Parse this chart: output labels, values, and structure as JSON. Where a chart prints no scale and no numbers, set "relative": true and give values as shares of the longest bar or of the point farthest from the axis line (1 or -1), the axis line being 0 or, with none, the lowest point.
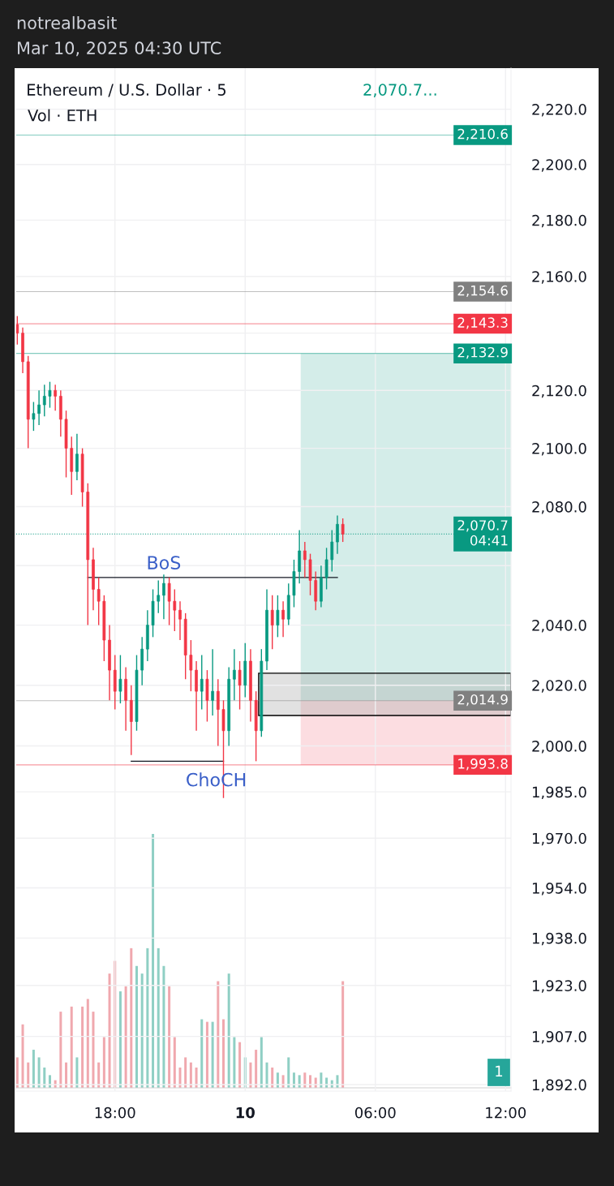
{
  "chart_data": [
    {
      "type": "candlestick",
      "title": "Ethereum / U.S. Dollar · 5",
      "annotations": [
        "notrealbasit",
        "Mar 10, 2025 04:30 UTC",
        "2,070.7...",
        {
          "text": "BoS",
          "x": "2025-03-09T20:15",
          "y": 2056
        },
        {
          "text": "ChoCH",
          "x": "2025-03-09T22:40",
          "y": 1995
        }
      ],
      "x": [
        "2025-03-09T13:30",
        "2025-03-09T13:45",
        "2025-03-09T14:00",
        "2025-03-09T14:15",
        "2025-03-09T14:30",
        "2025-03-09T14:45",
        "2025-03-09T15:00",
        "2025-03-09T15:15",
        "2025-03-09T15:30",
        "2025-03-09T15:45",
        "2025-03-09T16:00",
        "2025-03-09T16:15",
        "2025-03-09T16:30",
        "2025-03-09T16:45",
        "2025-03-09T17:00",
        "2025-03-09T17:15",
        "2025-03-09T17:30",
        "2025-03-09T17:45",
        "2025-03-09T18:00",
        "2025-03-09T18:15",
        "2025-03-09T18:30",
        "2025-03-09T18:45",
        "2025-03-09T19:00",
        "2025-03-09T19:15",
        "2025-03-09T19:30",
        "2025-03-09T19:45",
        "2025-03-09T20:00",
        "2025-03-09T20:15",
        "2025-03-09T20:30",
        "2025-03-09T20:45",
        "2025-03-09T21:00",
        "2025-03-09T21:15",
        "2025-03-09T21:30",
        "2025-03-09T21:45",
        "2025-03-09T22:00",
        "2025-03-09T22:15",
        "2025-03-09T22:30",
        "2025-03-09T22:45",
        "2025-03-09T23:00",
        "2025-03-09T23:15",
        "2025-03-09T23:30",
        "2025-03-09T23:45",
        "2025-03-10T00:00",
        "2025-03-10T00:15",
        "2025-03-10T00:30",
        "2025-03-10T00:45",
        "2025-03-10T01:00",
        "2025-03-10T01:15",
        "2025-03-10T01:30",
        "2025-03-10T01:45",
        "2025-03-10T02:00",
        "2025-03-10T02:15",
        "2025-03-10T02:30",
        "2025-03-10T02:45",
        "2025-03-10T03:00",
        "2025-03-10T03:15",
        "2025-03-10T03:30",
        "2025-03-10T03:45",
        "2025-03-10T04:00",
        "2025-03-10T04:15",
        "2025-03-10T04:30"
      ],
      "ohlc": [
        [
          2143,
          2146,
          2136,
          2140
        ],
        [
          2140,
          2142,
          2126,
          2130
        ],
        [
          2130,
          2132,
          2100,
          2110
        ],
        [
          2110,
          2116,
          2106,
          2112
        ],
        [
          2112,
          2120,
          2108,
          2115
        ],
        [
          2115,
          2122,
          2111,
          2118
        ],
        [
          2118,
          2123,
          2114,
          2120
        ],
        [
          2120,
          2122,
          2113,
          2118
        ],
        [
          2118,
          2120,
          2104,
          2110
        ],
        [
          2110,
          2113,
          2090,
          2100
        ],
        [
          2100,
          2104,
          2084,
          2092
        ],
        [
          2092,
          2105,
          2089,
          2098
        ],
        [
          2098,
          2100,
          2080,
          2085
        ],
        [
          2085,
          2088,
          2040,
          2062
        ],
        [
          2062,
          2066,
          2045,
          2052
        ],
        [
          2052,
          2056,
          2040,
          2048
        ],
        [
          2048,
          2050,
          2028,
          2035
        ],
        [
          2035,
          2040,
          2015,
          2025
        ],
        [
          2025,
          2030,
          2012,
          2018
        ],
        [
          2018,
          2030,
          2014,
          2022
        ],
        [
          2022,
          2026,
          2005,
          2015
        ],
        [
          2015,
          2020,
          1997,
          2008
        ],
        [
          2008,
          2030,
          2005,
          2025
        ],
        [
          2025,
          2036,
          2020,
          2032
        ],
        [
          2032,
          2045,
          2028,
          2040
        ],
        [
          2040,
          2052,
          2036,
          2048
        ],
        [
          2048,
          2055,
          2044,
          2050
        ],
        [
          2050,
          2057,
          2042,
          2054
        ],
        [
          2054,
          2056,
          2040,
          2048
        ],
        [
          2048,
          2052,
          2038,
          2045
        ],
        [
          2045,
          2048,
          2035,
          2042
        ],
        [
          2042,
          2044,
          2022,
          2030
        ],
        [
          2030,
          2035,
          2018,
          2025
        ],
        [
          2025,
          2028,
          2005,
          2018
        ],
        [
          2018,
          2030,
          2012,
          2022
        ],
        [
          2022,
          2025,
          2008,
          2015
        ],
        [
          2015,
          2032,
          2010,
          2018
        ],
        [
          2018,
          2022,
          2000,
          2012
        ],
        [
          2012,
          2015,
          1983,
          2005
        ],
        [
          2005,
          2026,
          2000,
          2022
        ],
        [
          2022,
          2032,
          2015,
          2025
        ],
        [
          2025,
          2028,
          2012,
          2020
        ],
        [
          2020,
          2034,
          2016,
          2028
        ],
        [
          2028,
          2032,
          2008,
          2015
        ],
        [
          2015,
          2018,
          1995,
          2005
        ],
        [
          2005,
          2032,
          2003,
          2028
        ],
        [
          2028,
          2052,
          2025,
          2045
        ],
        [
          2045,
          2050,
          2032,
          2040
        ],
        [
          2040,
          2050,
          2036,
          2045
        ],
        [
          2045,
          2048,
          2036,
          2042
        ],
        [
          2042,
          2054,
          2040,
          2050
        ],
        [
          2050,
          2062,
          2046,
          2058
        ],
        [
          2058,
          2072,
          2054,
          2065
        ],
        [
          2065,
          2068,
          2056,
          2062
        ],
        [
          2062,
          2064,
          2050,
          2055
        ],
        [
          2055,
          2058,
          2045,
          2048
        ],
        [
          2048,
          2060,
          2046,
          2056
        ],
        [
          2056,
          2066,
          2052,
          2062
        ],
        [
          2062,
          2072,
          2058,
          2068
        ],
        [
          2068,
          2077,
          2064,
          2074
        ],
        [
          2074,
          2076,
          2068,
          2070.7
        ]
      ],
      "colors": [
        "#f23645",
        "#f23645",
        "#f23645",
        "#089981",
        "#089981",
        "#089981",
        "#089981",
        "#f23645",
        "#f23645",
        "#f23645",
        "#f23645",
        "#089981",
        "#f23645",
        "#f23645",
        "#f23645",
        "#f23645",
        "#f23645",
        "#f23645",
        "#f23645",
        "#089981",
        "#f23645",
        "#f23645",
        "#089981",
        "#089981",
        "#089981",
        "#089981",
        "#089981",
        "#089981",
        "#f23645",
        "#f23645",
        "#f23645",
        "#f23645",
        "#f23645",
        "#f23645",
        "#089981",
        "#f23645",
        "#089981",
        "#f23645",
        "#f23645",
        "#089981",
        "#089981",
        "#f23645",
        "#089981",
        "#f23645",
        "#f23645",
        "#089981",
        "#089981",
        "#f23645",
        "#089981",
        "#f23645",
        "#089981",
        "#089981",
        "#089981",
        "#f23645",
        "#f23645",
        "#f23645",
        "#089981",
        "#089981",
        "#089981",
        "#089981",
        "#f23645"
      ],
      "series": [
        {
          "type": "line",
          "x": [
            "2025-03-09T16:45",
            "2025-03-10T04:15"
          ],
          "values": [
            2056,
            2056
          ],
          "color": "#131722"
        },
        {
          "type": "line",
          "x": [
            "2025-03-09T18:45",
            "2025-03-09T23:00"
          ],
          "values": [
            1995,
            1995
          ],
          "color": "#131722"
        }
      ],
      "bands": [
        {
          "axis": "y",
          "from": 2014.9,
          "to": 2132.9,
          "color": "#cdeae5"
        },
        {
          "axis": "y",
          "from": 1993.8,
          "to": 2014.9,
          "color": "#fcd7dc"
        },
        {
          "axis": "y",
          "from": 2010,
          "to": 2024,
          "color": "#a8a8a8"
        }
      ],
      "ref_lines": [
        {
          "axis": "y",
          "value": 2210.6,
          "label": "2,210.6",
          "color": "#089981"
        },
        {
          "axis": "y",
          "value": 2154.6,
          "label": "2,154.6",
          "color": "#808080"
        },
        {
          "axis": "y",
          "value": 2143.3,
          "label": "2,143.3",
          "color": "#f23645"
        },
        {
          "axis": "y",
          "value": 2132.9,
          "label": "2,132.9",
          "color": "#089981"
        },
        {
          "axis": "y",
          "value": 2070.7,
          "label": "2,070.7\n04:41",
          "color": "#089981",
          "line_style": "dotted"
        },
        {
          "axis": "y",
          "value": 2014.9,
          "label": "2,014.9",
          "color": "#808080"
        },
        {
          "axis": "y",
          "value": 1993.8,
          "label": "1,993.8",
          "color": "#f23645"
        }
      ],
      "log": "y",
      "xlim": [
        "2025-03-09T13:27",
        "2025-03-10T12:15"
      ],
      "xticks": [
        {
          "value": "2025-03-09T18:00",
          "label": "18:00"
        },
        {
          "value": "2025-03-10T00:00",
          "label": "10"
        },
        {
          "value": "2025-03-10T06:00",
          "label": "06:00"
        },
        {
          "value": "2025-03-10T12:00",
          "label": "12:00"
        }
      ],
      "ylim": [
        1890,
        2235
      ],
      "yticks": [
        {
          "value": 2220,
          "label": "2,220.0"
        },
        {
          "value": 2200,
          "label": "2,200.0"
        },
        {
          "value": 2180,
          "label": "2,180.0"
        },
        {
          "value": 2160,
          "label": "2,160.0"
        },
        {
          "value": 2140,
          "label": null
        },
        {
          "value": 2120,
          "label": "2,120.0"
        },
        {
          "value": 2100,
          "label": "2,100.0"
        },
        {
          "value": 2080,
          "label": "2,080.0"
        },
        {
          "value": 2060,
          "label": null
        },
        {
          "value": 2040,
          "label": "2,040.0"
        },
        {
          "value": 2020,
          "label": "2,020.0"
        },
        {
          "value": 2000,
          "label": "2,000.0"
        },
        {
          "value": 1985,
          "label": "1,985.0"
        },
        {
          "value": 1970,
          "label": "1,970.0"
        },
        {
          "value": 1954,
          "label": "1,954.0"
        },
        {
          "value": 1938,
          "label": "1,938.0"
        },
        {
          "value": 1923,
          "label": "1,923.0"
        },
        {
          "value": 1907,
          "label": "1,907.0"
        },
        {
          "value": 1892,
          "label": "1,892.0"
        }
      ],
      "grid": true
    },
    {
      "type": "bar",
      "title": "Vol · ETH",
      "relative": true,
      "annotations": [
        "1"
      ],
      "categories": [
        null,
        null,
        null,
        null,
        null,
        null,
        null,
        null,
        null,
        null,
        null,
        null,
        null,
        null,
        null,
        null,
        null,
        null,
        null,
        null,
        null,
        null,
        null,
        null,
        null,
        null,
        null,
        null,
        null,
        null,
        null,
        null,
        null,
        null,
        null,
        null,
        null,
        null,
        null,
        null,
        null,
        null,
        null,
        null,
        null,
        null,
        null,
        null,
        null,
        null,
        null,
        null,
        null,
        null,
        null,
        null,
        null,
        null,
        null,
        null,
        null
      ],
      "values": [
        0.12,
        0.25,
        0.1,
        0.15,
        0.12,
        0.08,
        0.05,
        0.03,
        0.3,
        0.1,
        0.32,
        0.12,
        0.32,
        0.35,
        0.3,
        0.1,
        0.2,
        0.45,
        0.5,
        0.38,
        0.4,
        0.55,
        0.48,
        0.45,
        0.55,
        1.0,
        0.55,
        0.48,
        0.4,
        0.2,
        0.08,
        0.12,
        0.1,
        0.08,
        0.27,
        0.26,
        0.26,
        0.42,
        0.27,
        0.45,
        0.2,
        0.18,
        0.12,
        0.1,
        0.15,
        0.2,
        0.1,
        0.08,
        0.06,
        0.05,
        0.12,
        0.06,
        0.05,
        0.06,
        0.05,
        0.04,
        0.06,
        0.04,
        0.03,
        0.05,
        0.42
      ],
      "colors": [
        "#f0a8ae",
        "#f0a8ae",
        "#f0a8ae",
        "#8fcfc4",
        "#8fcfc4",
        "#8fcfc4",
        "#8fcfc4",
        "#f0a8ae",
        "#f0a8ae",
        "#f0a8ae",
        "#f0a8ae",
        "#8fcfc4",
        "#f0a8ae",
        "#f0a8ae",
        "#f0a8ae",
        "#f0a8ae",
        "#f0a8ae",
        "#f0a8ae",
        "#f0a8ae",
        "#8fcfc4",
        "#f0a8ae",
        "#f0a8ae",
        "#8fcfc4",
        "#8fcfc4",
        "#8fcfc4",
        "#8fcfc4",
        "#8fcfc4",
        "#8fcfc4",
        "#f0a8ae",
        "#f0a8ae",
        "#f0a8ae",
        "#f0a8ae",
        "#f0a8ae",
        "#f0a8ae",
        "#8fcfc4",
        "#f0a8ae",
        "#8fcfc4",
        "#f0a8ae",
        "#f0a8ae",
        "#8fcfc4",
        "#8fcfc4",
        "#f0a8ae",
        "#8fcfc4",
        "#f0a8ae",
        "#f0a8ae",
        "#8fcfc4",
        "#8fcfc4",
        "#f0a8ae",
        "#8fcfc4",
        "#f0a8ae",
        "#8fcfc4",
        "#8fcfc4",
        "#8fcfc4",
        "#f0a8ae",
        "#f0a8ae",
        "#f0a8ae",
        "#8fcfc4",
        "#8fcfc4",
        "#8fcfc4",
        "#8fcfc4",
        "#f0a8ae"
      ]
    }
  ]
}
